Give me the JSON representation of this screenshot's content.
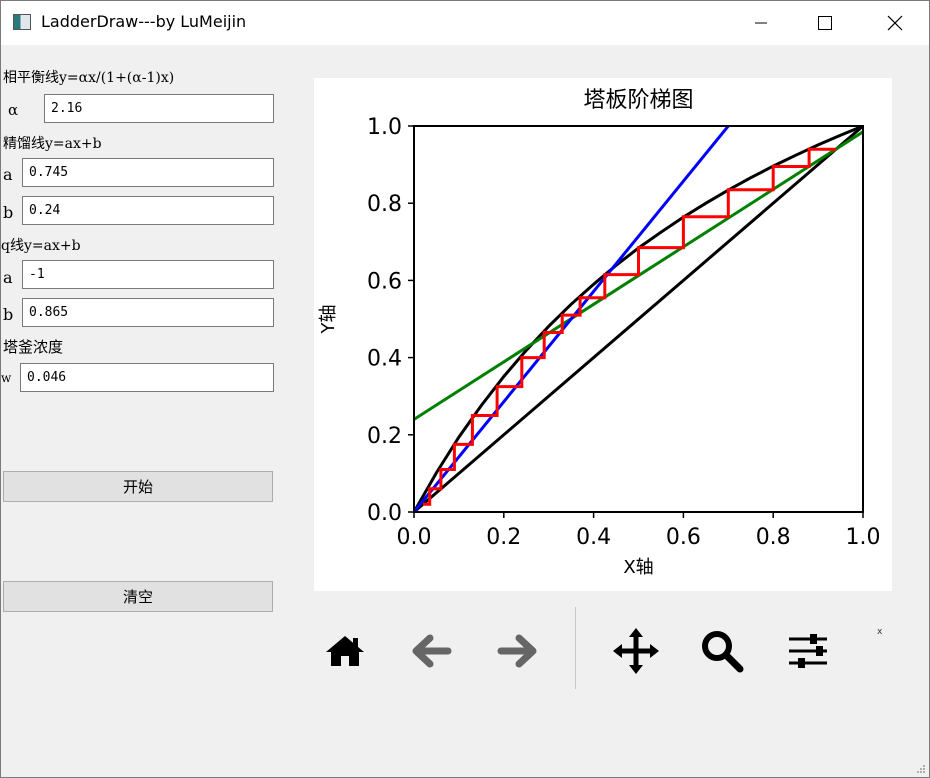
{
  "window": {
    "title": "LadderDraw---by LuMeijin",
    "accent": "#ffffff"
  },
  "params": {
    "equilibrium_title": "相平衡线y=αx/(1+(α-1)x)",
    "alpha_label": "α",
    "alpha_value": "2.16",
    "rectifying_title": "精馏线y=ax+b",
    "rect_a_label": "a",
    "rect_a_value": "0.745",
    "rect_b_label": "b",
    "rect_b_value": "0.24",
    "q_title": "q线y=ax+b",
    "q_a_label": "a",
    "q_a_value": "-1",
    "q_b_label": "b",
    "q_b_value": "0.865",
    "bottoms_title": "塔釜浓度",
    "w_label": "w",
    "w_value": "0.046"
  },
  "buttons": {
    "start": "开始",
    "clear": "清空"
  },
  "toolbar": {
    "icons": [
      "home-icon",
      "back-arrow-icon",
      "forward-arrow-icon",
      "pan-icon",
      "zoom-icon",
      "configure-subplots-icon"
    ],
    "coord_readout": "x"
  },
  "chart_data": {
    "type": "line",
    "title": "塔板阶梯图",
    "xlabel": "X轴",
    "ylabel": "Y轴",
    "xlim": [
      0,
      1
    ],
    "ylim": [
      0,
      1
    ],
    "xticks": [
      "0.0",
      "0.2",
      "0.4",
      "0.6",
      "0.8",
      "1.0"
    ],
    "yticks": [
      "0.0",
      "0.2",
      "0.4",
      "0.6",
      "0.8",
      "1.0"
    ],
    "grid": false,
    "colors": {
      "equilibrium": "#000000",
      "diagonal": "#000000",
      "rectifying": "#008000",
      "q_line": "#0000ff",
      "steps": "#ff0000"
    },
    "series": [
      {
        "x": [
          0,
          0.05,
          0.1,
          0.15,
          0.2,
          0.25,
          0.3,
          0.35,
          0.4,
          0.45,
          0.5,
          0.55,
          0.6,
          0.65,
          0.7,
          0.75,
          0.8,
          0.85,
          0.9,
          0.95,
          1.0
        ],
        "values": [
          0,
          0.102,
          0.194,
          0.276,
          0.351,
          0.419,
          0.481,
          0.538,
          0.59,
          0.639,
          0.684,
          0.725,
          0.764,
          0.8,
          0.834,
          0.866,
          0.896,
          0.924,
          0.951,
          0.976,
          1.0
        ]
      },
      {
        "x": [
          0,
          1
        ],
        "values": [
          0,
          1
        ]
      },
      {
        "x": [
          0,
          1
        ],
        "values": [
          0.24,
          0.985
        ]
      },
      {
        "x": [
          0,
          0.7
        ],
        "values": [
          0,
          1
        ]
      },
      {
        "x": [
          0.94,
          0.88,
          0.88,
          0.8,
          0.8,
          0.7,
          0.7,
          0.6,
          0.6,
          0.5,
          0.5,
          0.425,
          0.425,
          0.37,
          0.37,
          0.33,
          0.33,
          0.29,
          0.29,
          0.24,
          0.24,
          0.185,
          0.185,
          0.13,
          0.13,
          0.09,
          0.09,
          0.06,
          0.06,
          0.035,
          0.035,
          0.02
        ],
        "values": [
          0.94,
          0.94,
          0.895,
          0.895,
          0.835,
          0.835,
          0.765,
          0.765,
          0.685,
          0.685,
          0.615,
          0.615,
          0.555,
          0.555,
          0.51,
          0.51,
          0.465,
          0.465,
          0.4,
          0.4,
          0.325,
          0.325,
          0.25,
          0.25,
          0.175,
          0.175,
          0.11,
          0.11,
          0.06,
          0.06,
          0.02,
          0.02
        ]
      }
    ]
  }
}
